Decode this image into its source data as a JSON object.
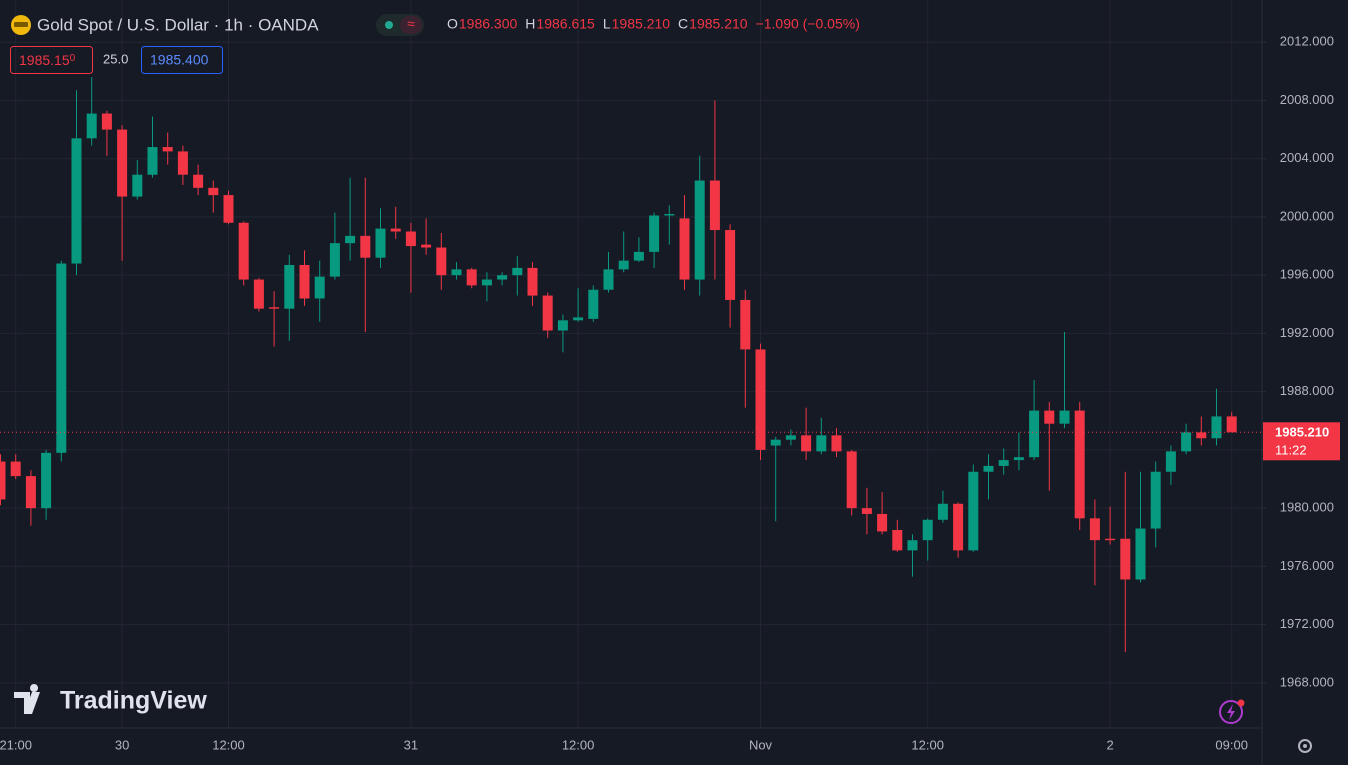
{
  "chart_data": {
    "type": "candlestick",
    "header": {
      "title": "Gold Spot / U.S. Dollar · 1h · OANDA",
      "ohlc": [
        {
          "key": "O",
          "value": "1986.300"
        },
        {
          "key": "H",
          "value": "1986.615"
        },
        {
          "key": "L",
          "value": "1985.210"
        },
        {
          "key": "C",
          "value": "1985.210"
        }
      ],
      "change": "−1.090 (−0.05%)"
    },
    "bid": "1985.15",
    "bid_tail": "0",
    "spread": "25.0",
    "ask": "1985.400",
    "price_label": "1985.210",
    "countdown": "11:22",
    "watermark": "TradingView",
    "up_color": "#089981",
    "down_color": "#f23645",
    "grid": true,
    "categories": [
      null,
      "21:00",
      null,
      null,
      null,
      null,
      null,
      null,
      "30",
      null,
      null,
      null,
      null,
      null,
      null,
      "12:00",
      null,
      null,
      null,
      null,
      null,
      null,
      null,
      null,
      null,
      null,
      null,
      "31",
      null,
      null,
      null,
      null,
      null,
      null,
      null,
      null,
      null,
      null,
      "12:00",
      null,
      null,
      null,
      null,
      null,
      null,
      null,
      null,
      null,
      null,
      null,
      "Nov",
      null,
      null,
      null,
      null,
      null,
      null,
      null,
      null,
      null,
      null,
      "12:00",
      null,
      null,
      null,
      null,
      null,
      null,
      null,
      null,
      null,
      null,
      null,
      "2",
      null,
      null,
      null,
      null,
      null,
      null,
      null,
      "09:00"
    ],
    "open": [
      1983.2,
      1983.2,
      1982.2,
      1980.0,
      1983.8,
      1996.8,
      2005.4,
      2007.1,
      2006.0,
      2001.4,
      2002.9,
      2004.8,
      2004.5,
      2002.9,
      2002.0,
      2001.5,
      1999.6,
      1995.7,
      1993.8,
      1993.7,
      1996.7,
      1994.4,
      1995.9,
      1998.2,
      1998.7,
      1997.2,
      1999.2,
      1999.0,
      1998.1,
      1997.9,
      1996.0,
      1996.4,
      1995.3,
      1995.7,
      1996.0,
      1996.5,
      1994.6,
      1992.2,
      1992.9,
      1993.0,
      1995.0,
      1996.4,
      1997.0,
      1997.6,
      2000.1,
      1999.9,
      1995.7,
      2002.5,
      1999.1,
      1994.3,
      1990.9,
      1984.3,
      1984.7,
      1985.0,
      1983.9,
      1985.0,
      1983.9,
      1980.0,
      1979.6,
      1978.5,
      1977.1,
      1977.8,
      1979.2,
      1980.3,
      1977.1,
      1982.5,
      1982.9,
      1983.3,
      1983.5,
      1986.7,
      1985.8,
      1986.7,
      1979.3,
      1977.9,
      1977.9,
      1975.1,
      1978.6,
      1982.5,
      1983.9,
      1985.2,
      1984.8,
      1986.3
    ],
    "high": [
      1983.7,
      1983.7,
      1982.6,
      1984.0,
      1997.0,
      2008.7,
      2009.6,
      2007.3,
      2006.3,
      2003.9,
      2006.9,
      2005.8,
      2004.9,
      2003.6,
      2002.5,
      2001.8,
      1999.7,
      1995.8,
      1994.9,
      1997.4,
      1997.7,
      1997.0,
      2000.3,
      2002.7,
      2002.7,
      2000.6,
      2000.7,
      1999.6,
      1999.9,
      1998.9,
      1996.9,
      1996.5,
      1996.2,
      1996.2,
      1997.3,
      1996.9,
      1994.8,
      1993.3,
      1995.1,
      1995.3,
      1997.6,
      1999.0,
      1998.6,
      2000.3,
      2000.8,
      2001.5,
      2004.2,
      2008.0,
      1999.5,
      1995.0,
      1991.3,
      1984.9,
      1985.4,
      1986.9,
      1986.2,
      1985.5,
      1984.0,
      1981.4,
      1981.1,
      1979.2,
      1978.2,
      1979.3,
      1981.2,
      1980.4,
      1983.0,
      1983.7,
      1984.1,
      1985.2,
      1988.8,
      1987.3,
      1992.1,
      1987.3,
      1980.6,
      1980.1,
      1982.5,
      1982.5,
      1983.2,
      1984.3,
      1985.8,
      1986.3,
      1988.2,
      1986.615
    ],
    "low": [
      1980.2,
      1982.0,
      1978.8,
      1979.2,
      1983.2,
      1996.0,
      2004.9,
      2004.2,
      1997.0,
      2001.2,
      2002.7,
      2003.6,
      2002.2,
      2001.5,
      2000.3,
      1999.5,
      1995.3,
      1993.5,
      1991.1,
      1991.5,
      1993.9,
      1992.8,
      1995.7,
      1997.0,
      1992.1,
      1996.5,
      1998.5,
      1994.8,
      1997.4,
      1995.0,
      1995.7,
      1995.1,
      1994.2,
      1995.3,
      1994.6,
      1993.9,
      1991.7,
      1990.7,
      1992.8,
      1992.8,
      1994.8,
      1996.2,
      1996.9,
      1996.5,
      1998.1,
      1995.0,
      1994.6,
      1995.7,
      1992.4,
      1986.9,
      1983.3,
      1979.1,
      1984.3,
      1983.3,
      1983.7,
      1983.5,
      1979.5,
      1978.2,
      1978.2,
      1977.0,
      1975.3,
      1976.4,
      1979.0,
      1976.6,
      1977.0,
      1980.6,
      1982.3,
      1982.6,
      1983.3,
      1981.2,
      1985.5,
      1978.5,
      1974.7,
      1977.5,
      1970.1,
      1974.9,
      1977.3,
      1981.6,
      1983.7,
      1984.3,
      1984.3,
      1985.21
    ],
    "close": [
      1980.6,
      1982.2,
      1980.0,
      1983.8,
      1996.8,
      2005.4,
      2007.1,
      2006.0,
      2001.4,
      2002.9,
      2004.8,
      2004.5,
      2002.9,
      2002.0,
      2001.5,
      1999.6,
      1995.7,
      1993.7,
      1993.7,
      1996.7,
      1994.4,
      1995.9,
      1998.2,
      1998.7,
      1997.2,
      1999.2,
      1999.0,
      1998.0,
      1997.9,
      1996.0,
      1996.4,
      1995.3,
      1995.7,
      1996.0,
      1996.5,
      1994.6,
      1992.2,
      1992.9,
      1993.1,
      1995.0,
      1996.4,
      1997.0,
      1997.6,
      2000.1,
      2000.2,
      1995.7,
      2002.5,
      1999.1,
      1994.3,
      1990.9,
      1984.0,
      1984.7,
      1985.0,
      1983.9,
      1985.0,
      1983.9,
      1980.0,
      1979.6,
      1978.4,
      1977.1,
      1977.8,
      1979.2,
      1980.3,
      1977.1,
      1982.5,
      1982.9,
      1983.3,
      1983.5,
      1986.7,
      1985.8,
      1986.7,
      1979.3,
      1977.8,
      1977.8,
      1975.1,
      1978.6,
      1982.5,
      1983.9,
      1985.2,
      1984.8,
      1986.3,
      1985.21
    ],
    "ylim": [
      1964.9,
      2014.9
    ],
    "yticks": [
      {
        "value": 1968,
        "label": "1968.000"
      },
      {
        "value": 1972,
        "label": "1972.000"
      },
      {
        "value": 1976,
        "label": "1976.000"
      },
      {
        "value": 1980,
        "label": "1980.000"
      },
      {
        "value": 1984,
        "label": "1984.000"
      },
      {
        "value": 1988,
        "label": "1988.000"
      },
      {
        "value": 1992,
        "label": "1992.000"
      },
      {
        "value": 1996,
        "label": "1996.000"
      },
      {
        "value": 2000,
        "label": "2000.000"
      },
      {
        "value": 2004,
        "label": "2004.000"
      },
      {
        "value": 2008,
        "label": "2008.000"
      },
      {
        "value": 2012,
        "label": "2012.000"
      }
    ]
  }
}
